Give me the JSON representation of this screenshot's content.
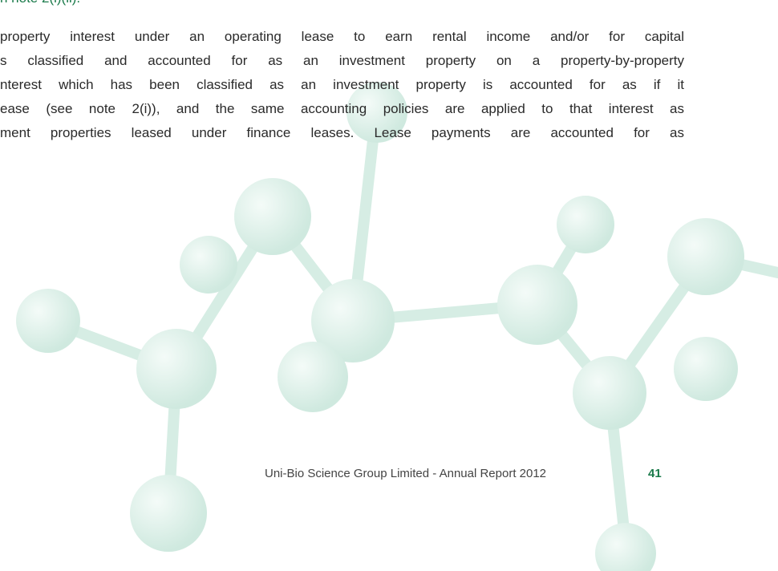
{
  "body": {
    "fragment": "n note 2(i)(ii).",
    "paragraph": [
      "property interest under an operating lease to earn rental income and/or for capital",
      "s classified and accounted for as an investment property on a property-by-property",
      "nterest which has been classified as an investment property is accounted for as if it",
      "ease (see note 2(i)), and the same accounting policies are applied to that interest as",
      "ment properties leased under finance leases. Lease payments are accounted for as"
    ]
  },
  "footer": {
    "text": "Uni-Bio Science Group Limited - Annual Report 2012",
    "page_number": "41"
  }
}
